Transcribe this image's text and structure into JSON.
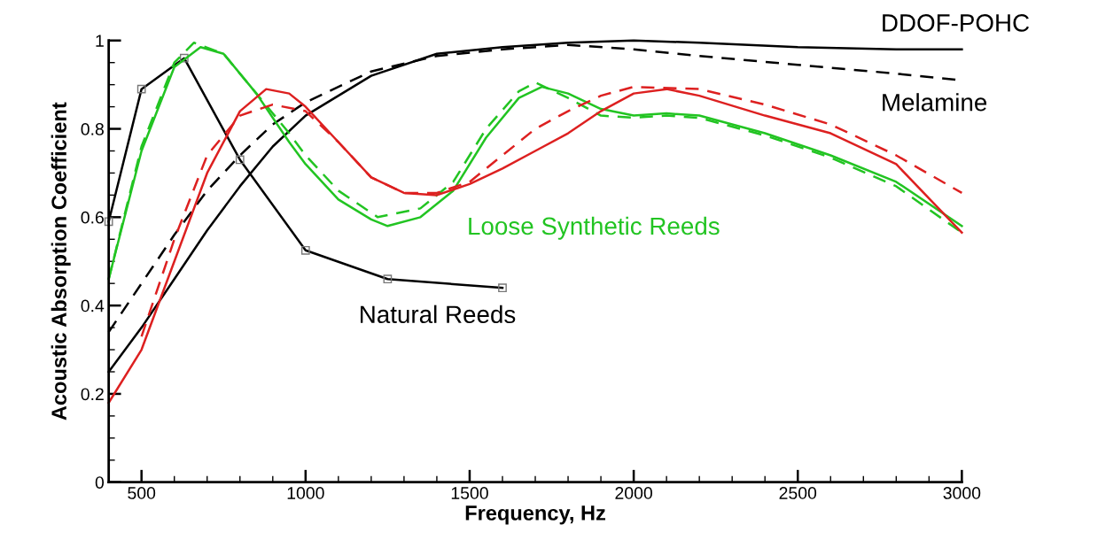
{
  "chart_data": {
    "type": "line",
    "xlabel": "Frequency, Hz",
    "ylabel": "Acoustic Absorption Coefficient",
    "xlim": [
      400,
      3000
    ],
    "xticks": [
      500,
      1000,
      1500,
      2000,
      2500,
      3000
    ],
    "ylim": [
      0,
      1
    ],
    "yticks": [
      0,
      0.2,
      0.4,
      0.6,
      0.8,
      1
    ],
    "grid": false,
    "legend": false,
    "series": [
      {
        "name": "Natural Reeds",
        "color": "#000000",
        "marker": "square",
        "line_style": "solid",
        "x": [
          400,
          500,
          630,
          800,
          1000,
          1250,
          1600
        ],
        "values": [
          0.59,
          0.89,
          0.96,
          0.73,
          0.525,
          0.46,
          0.44
        ]
      },
      {
        "name": "DDOF-POHC",
        "color": "#000000",
        "marker": "none",
        "line_style": "solid",
        "x": [
          400,
          500,
          600,
          700,
          800,
          900,
          1000,
          1200,
          1400,
          1600,
          1800,
          2000,
          2200,
          2500,
          2800,
          3000
        ],
        "values": [
          0.25,
          0.35,
          0.46,
          0.57,
          0.67,
          0.76,
          0.83,
          0.92,
          0.97,
          0.985,
          0.995,
          1.0,
          0.995,
          0.985,
          0.98,
          0.98
        ]
      },
      {
        "name": "Melamine",
        "color": "#000000",
        "marker": "none",
        "line_style": "dashed",
        "x": [
          400,
          500,
          600,
          700,
          800,
          900,
          1000,
          1200,
          1400,
          1600,
          1800,
          2000,
          2200,
          2500,
          2800,
          3000
        ],
        "values": [
          0.34,
          0.45,
          0.56,
          0.66,
          0.74,
          0.81,
          0.86,
          0.93,
          0.965,
          0.98,
          0.99,
          0.98,
          0.965,
          0.945,
          0.925,
          0.91
        ]
      },
      {
        "name": "Loose Synthetic Reeds",
        "color": "#22c422",
        "marker": "none",
        "line_style": "solid",
        "x": [
          400,
          500,
          600,
          680,
          750,
          850,
          950,
          1000,
          1100,
          1200,
          1250,
          1350,
          1450,
          1550,
          1650,
          1720,
          1800,
          1900,
          2000,
          2100,
          2200,
          2400,
          2600,
          2800,
          3000
        ],
        "values": [
          0.46,
          0.75,
          0.94,
          0.985,
          0.97,
          0.88,
          0.77,
          0.72,
          0.64,
          0.595,
          0.58,
          0.6,
          0.66,
          0.78,
          0.87,
          0.895,
          0.88,
          0.845,
          0.83,
          0.835,
          0.83,
          0.79,
          0.74,
          0.68,
          0.58
        ]
      },
      {
        "color": "#22c422",
        "marker": "none",
        "line_style": "dashed",
        "x": [
          400,
          500,
          600,
          660,
          750,
          850,
          950,
          1000,
          1100,
          1220,
          1350,
          1450,
          1550,
          1650,
          1700,
          1800,
          1900,
          2000,
          2100,
          2200,
          2400,
          2600,
          2800,
          3000
        ],
        "values": [
          0.46,
          0.76,
          0.95,
          0.995,
          0.97,
          0.88,
          0.79,
          0.74,
          0.66,
          0.6,
          0.62,
          0.68,
          0.8,
          0.885,
          0.905,
          0.87,
          0.83,
          0.825,
          0.83,
          0.825,
          0.785,
          0.735,
          0.67,
          0.565
        ]
      },
      {
        "color": "#dd2020",
        "marker": "none",
        "line_style": "solid",
        "x": [
          400,
          500,
          600,
          700,
          800,
          880,
          950,
          1000,
          1100,
          1200,
          1300,
          1400,
          1500,
          1600,
          1700,
          1800,
          1900,
          2000,
          2100,
          2200,
          2400,
          2600,
          2800,
          3000
        ],
        "values": [
          0.18,
          0.3,
          0.5,
          0.7,
          0.84,
          0.89,
          0.88,
          0.85,
          0.77,
          0.69,
          0.655,
          0.65,
          0.675,
          0.71,
          0.75,
          0.79,
          0.84,
          0.88,
          0.89,
          0.875,
          0.83,
          0.79,
          0.72,
          0.565
        ]
      },
      {
        "color": "#dd2020",
        "marker": "none",
        "line_style": "dashed",
        "x": [
          500,
          600,
          700,
          800,
          900,
          1000,
          1100,
          1200,
          1300,
          1400,
          1500,
          1600,
          1700,
          1800,
          1900,
          2000,
          2200,
          2400,
          2600,
          2800,
          3000
        ],
        "values": [
          0.33,
          0.55,
          0.74,
          0.83,
          0.855,
          0.84,
          0.77,
          0.69,
          0.655,
          0.655,
          0.68,
          0.74,
          0.8,
          0.84,
          0.875,
          0.895,
          0.89,
          0.855,
          0.81,
          0.74,
          0.655
        ]
      }
    ]
  }
}
